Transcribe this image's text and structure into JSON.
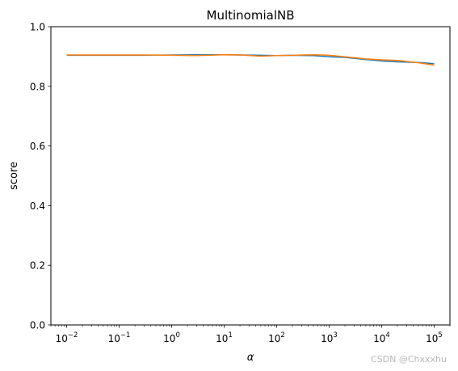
{
  "chart_data": {
    "type": "line",
    "title": "MultinomialNB",
    "xlabel": "α",
    "ylabel": "score",
    "xscale": "log",
    "xlim": [
      0.005,
      200000
    ],
    "ylim": [
      0.0,
      1.0
    ],
    "grid": false,
    "legend": "none",
    "x_ticks": [
      {
        "value": 0.01,
        "base": "10",
        "exp": "−2"
      },
      {
        "value": 0.1,
        "base": "10",
        "exp": "−1"
      },
      {
        "value": 1,
        "base": "10",
        "exp": "0"
      },
      {
        "value": 10,
        "base": "10",
        "exp": "1"
      },
      {
        "value": 100,
        "base": "10",
        "exp": "2"
      },
      {
        "value": 1000,
        "base": "10",
        "exp": "3"
      },
      {
        "value": 10000,
        "base": "10",
        "exp": "4"
      },
      {
        "value": 100000,
        "base": "10",
        "exp": "5"
      }
    ],
    "y_ticks": [
      "0.0",
      "0.2",
      "0.4",
      "0.6",
      "0.8",
      "1.0"
    ],
    "x": [
      0.01,
      0.03,
      0.1,
      0.3,
      1,
      3,
      10,
      20,
      50,
      100,
      200,
      500,
      1000,
      2000,
      5000,
      10000,
      20000,
      50000,
      100000
    ],
    "series": [
      {
        "color": "#1f77b4",
        "values": [
          0.904,
          0.904,
          0.904,
          0.904,
          0.905,
          0.906,
          0.906,
          0.905,
          0.904,
          0.903,
          0.904,
          0.903,
          0.899,
          0.897,
          0.89,
          0.885,
          0.882,
          0.88,
          0.876
        ]
      },
      {
        "color": "#ff7f0e",
        "values": [
          0.905,
          0.905,
          0.905,
          0.905,
          0.904,
          0.903,
          0.906,
          0.905,
          0.901,
          0.903,
          0.904,
          0.906,
          0.904,
          0.899,
          0.892,
          0.889,
          0.887,
          0.879,
          0.871
        ]
      }
    ]
  },
  "watermark": "CSDN @Chxxxhu"
}
